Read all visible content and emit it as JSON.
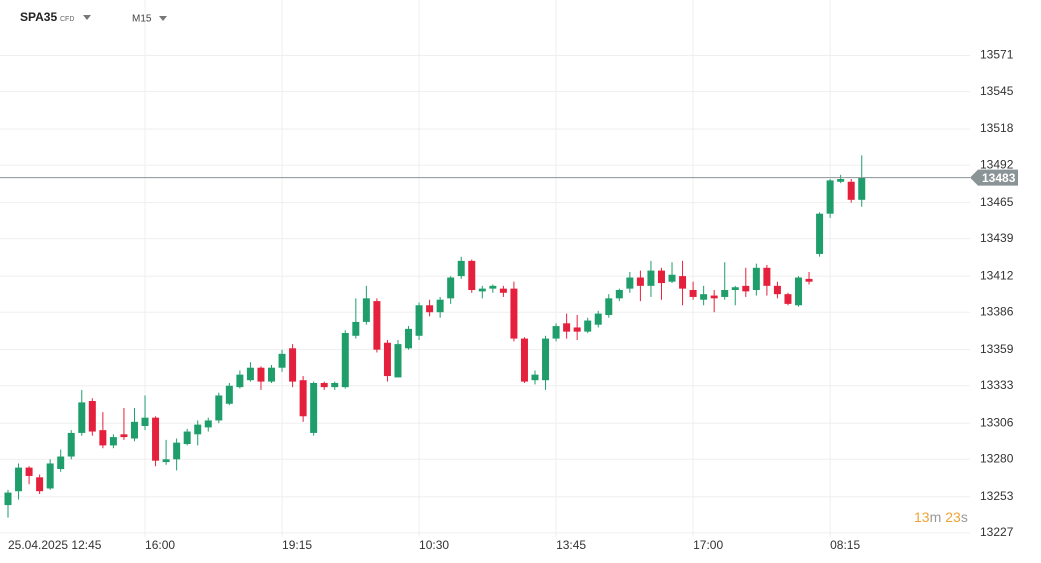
{
  "chart_data": {
    "type": "candlestick",
    "symbol": "SPA35",
    "symbol_tag": "CFD",
    "timeframe": "M15",
    "categories": [
      "25.04.2025 12:45",
      null,
      null,
      null,
      null,
      null,
      null,
      null,
      null,
      null,
      null,
      null,
      null,
      "16:00",
      null,
      null,
      null,
      null,
      null,
      null,
      null,
      null,
      null,
      null,
      null,
      null,
      "19:15",
      null,
      null,
      null,
      null,
      null,
      null,
      null,
      null,
      null,
      null,
      null,
      null,
      "10:30",
      null,
      null,
      null,
      null,
      null,
      null,
      null,
      null,
      null,
      null,
      null,
      null,
      "13:45",
      null,
      null,
      null,
      null,
      null,
      null,
      null,
      null,
      null,
      null,
      null,
      null,
      "17:00",
      null,
      null,
      null,
      null,
      null,
      null,
      null,
      null,
      null,
      null,
      null,
      null,
      "08:15",
      null,
      null,
      null
    ],
    "open": [
      13247,
      13257,
      13274,
      13267,
      13259,
      13273,
      13282,
      13299,
      13322,
      13301,
      13290,
      13298,
      13295,
      13304,
      13310,
      13278,
      13280,
      13291,
      13298,
      13303,
      13308,
      13320,
      13332,
      13337,
      13346,
      13336,
      13346,
      13360,
      13337,
      13299,
      13335,
      13332,
      13332,
      13369,
      13379,
      13394,
      13364,
      13339,
      13360,
      13369,
      13391,
      13386,
      13396,
      13412,
      13423,
      13401,
      13403,
      13403,
      13403,
      13367,
      13337,
      13337,
      13367,
      13378,
      13375,
      13372,
      13377,
      13384,
      13396,
      13403,
      13411,
      13405,
      13416,
      13408,
      13412,
      13402,
      13395,
      13398,
      13397,
      13402,
      13405,
      13402,
      13418,
      13405,
      13399,
      13391,
      13410,
      13428,
      13457,
      13480,
      13480,
      13467
    ],
    "high": [
      13258,
      13277,
      13275,
      13269,
      13280,
      13287,
      13301,
      13330,
      13324,
      13314,
      13298,
      13317,
      13317,
      13326,
      13311,
      13294,
      13295,
      13302,
      13308,
      13310,
      13328,
      13335,
      13344,
      13350,
      13347,
      13348,
      13359,
      13363,
      13340,
      13336,
      13336,
      13336,
      13373,
      13396,
      13405,
      13396,
      13366,
      13366,
      13376,
      13393,
      13395,
      13397,
      13412,
      13426,
      13424,
      13405,
      13406,
      13405,
      13408,
      13368,
      13344,
      13369,
      13378,
      13385,
      13384,
      13382,
      13387,
      13399,
      13403,
      13415,
      13416,
      13423,
      13418,
      13422,
      13423,
      13408,
      13405,
      13402,
      13422,
      13405,
      13418,
      13421,
      13420,
      13408,
      13400,
      13412,
      13415,
      13458,
      13482,
      13485,
      13482,
      13499
    ],
    "low": [
      13238,
      13251,
      13262,
      13255,
      13258,
      13271,
      13280,
      13297,
      13297,
      13288,
      13288,
      13294,
      13293,
      13301,
      13275,
      13276,
      13272,
      13290,
      13290,
      13300,
      13306,
      13319,
      13331,
      13336,
      13330,
      13335,
      13343,
      13332,
      13307,
      13297,
      13330,
      13330,
      13331,
      13367,
      13377,
      13357,
      13336,
      13339,
      13359,
      13366,
      13383,
      13382,
      13392,
      13410,
      13400,
      13396,
      13400,
      13397,
      13365,
      13335,
      13334,
      13330,
      13365,
      13367,
      13366,
      13371,
      13375,
      13382,
      13394,
      13400,
      13394,
      13397,
      13395,
      13407,
      13391,
      13395,
      13391,
      13386,
      13395,
      13391,
      13397,
      13398,
      13398,
      13396,
      13391,
      13390,
      13406,
      13426,
      13454,
      13479,
      13465,
      13462
    ],
    "close": [
      13256,
      13274,
      13268,
      13257,
      13277,
      13282,
      13299,
      13321,
      13300,
      13290,
      13296,
      13296,
      13307,
      13310,
      13279,
      13280,
      13292,
      13300,
      13305,
      13308,
      13326,
      13333,
      13341,
      13346,
      13336,
      13346,
      13356,
      13336,
      13311,
      13335,
      13332,
      13335,
      13371,
      13379,
      13396,
      13359,
      13340,
      13363,
      13374,
      13391,
      13386,
      13395,
      13411,
      13423,
      13402,
      13403,
      13405,
      13400,
      13367,
      13336,
      13341,
      13367,
      13376,
      13372,
      13372,
      13380,
      13385,
      13396,
      13402,
      13411,
      13405,
      13416,
      13407,
      13413,
      13403,
      13397,
      13399,
      13396,
      13402,
      13404,
      13401,
      13418,
      13405,
      13399,
      13392,
      13411,
      13408,
      13457,
      13481,
      13482,
      13467,
      13483
    ],
    "up_color": "#1f9e6c",
    "down_color": "#e4203c",
    "ylim": [
      13224,
      13611
    ],
    "yticks": [
      13227,
      13253,
      13280,
      13306,
      13333,
      13359,
      13386,
      13412,
      13439,
      13465,
      13492,
      13518,
      13545,
      13571
    ],
    "grid": true,
    "last_price": 13483,
    "countdown": {
      "minutes": 13,
      "minutes_unit": "m",
      "seconds": 23,
      "seconds_unit": "s"
    }
  }
}
